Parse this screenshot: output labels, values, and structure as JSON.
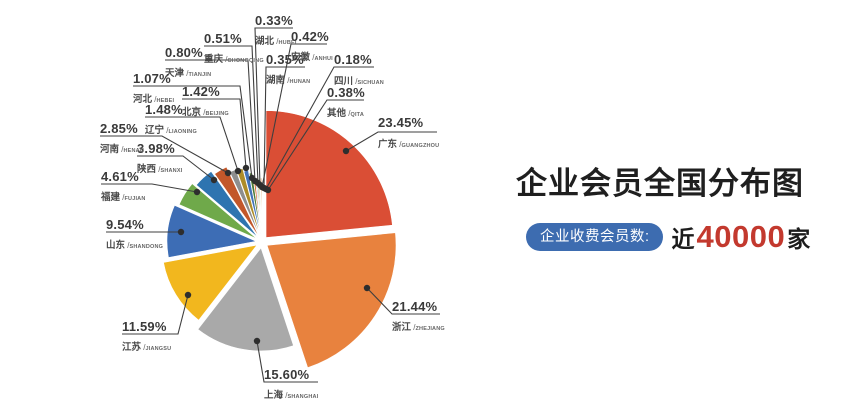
{
  "title": "企业会员全国分布图",
  "badge": {
    "label": "企业收费会员数:",
    "prefix": "近",
    "number": "40000",
    "suffix": "家"
  },
  "accent_colors": {
    "badge_bg": "#3D6CB0",
    "number_red": "#C3392E",
    "leader_line": "#3f3f3f"
  },
  "chart_data": {
    "type": "pie",
    "title": "企业会员全国分布图",
    "label_format": "value.toFixed(2) + %",
    "direction": "clockwise",
    "start_angle_deg": 0,
    "rose_type": true,
    "legend_position": "callout-labels",
    "series": [
      {
        "name": "广东",
        "name_en": "GUANGZHOU",
        "value": 23.45,
        "color": "#DA4E35"
      },
      {
        "name": "浙江",
        "name_en": "ZHEJIANG",
        "value": 21.44,
        "color": "#E8823E"
      },
      {
        "name": "上海",
        "name_en": "SHANGHAI",
        "value": 15.6,
        "color": "#A9A9A9"
      },
      {
        "name": "江苏",
        "name_en": "JIANGSU",
        "value": 11.59,
        "color": "#F2B71E"
      },
      {
        "name": "山东",
        "name_en": "SHANDONG",
        "value": 9.54,
        "color": "#3D6DB5"
      },
      {
        "name": "福建",
        "name_en": "FUJIAN",
        "value": 4.61,
        "color": "#6FA94A"
      },
      {
        "name": "陕西",
        "name_en": "SHANXI",
        "value": 3.98,
        "color": "#2E74B0"
      },
      {
        "name": "河南",
        "name_en": "HENAN",
        "value": 2.85,
        "color": "#C2572A"
      },
      {
        "name": "辽宁",
        "name_en": "LIAONING",
        "value": 1.48,
        "color": "#8E8E8E"
      },
      {
        "name": "北京",
        "name_en": "BEIJING",
        "value": 1.42,
        "color": "#AD8C28"
      },
      {
        "name": "河北",
        "name_en": "HEBEI",
        "value": 1.07,
        "color": "#4273B8"
      },
      {
        "name": "天津",
        "name_en": "TIANJIN",
        "value": 0.8,
        "color": "#4E7A33"
      },
      {
        "name": "重庆",
        "name_en": "CHONGQING",
        "value": 0.51,
        "color": "#D4682F"
      },
      {
        "name": "湖北",
        "name_en": "HUBEI",
        "value": 0.33,
        "color": "#8FAFD4"
      },
      {
        "name": "安徽",
        "name_en": "ANHUI",
        "value": 0.42,
        "color": "#C5B878"
      },
      {
        "name": "湖南",
        "name_en": "HUNAN",
        "value": 0.35,
        "color": "#8FBC6F"
      },
      {
        "name": "四川",
        "name_en": "SICHUAN",
        "value": 0.18,
        "color": "#3E8FA8"
      },
      {
        "name": "其他",
        "name_en": "QITA",
        "value": 0.38,
        "color": "#E8B98A"
      }
    ]
  }
}
